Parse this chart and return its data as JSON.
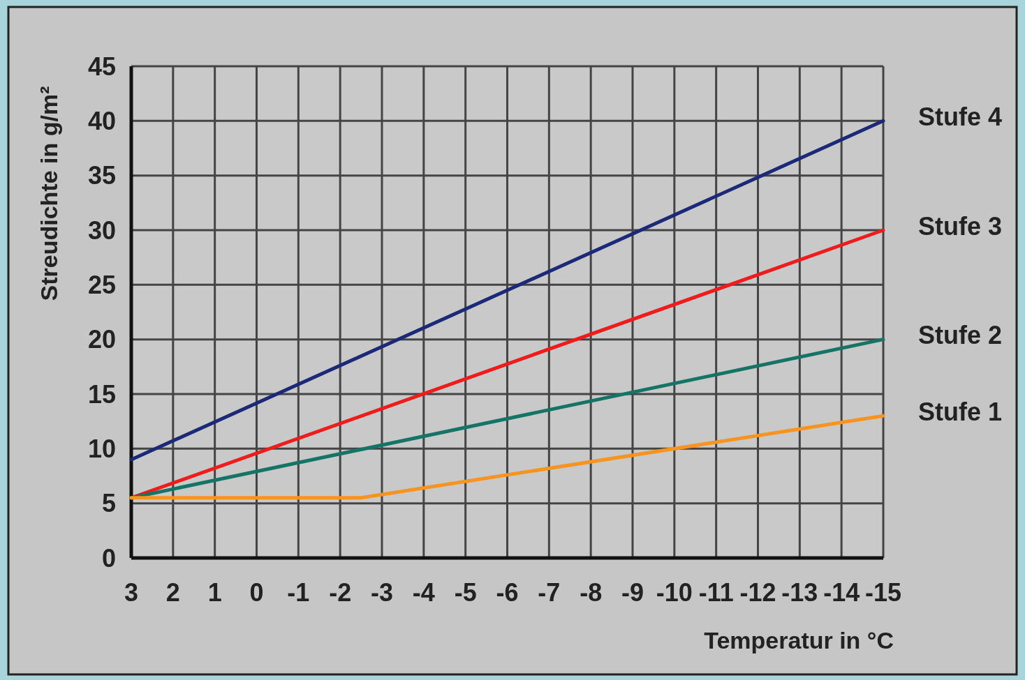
{
  "chart_data": {
    "type": "line",
    "xlabel": "Temperatur in °C",
    "ylabel": "Streudichte in g/m²",
    "xlim": [
      3,
      -15
    ],
    "ylim": [
      0,
      45
    ],
    "xticks": [
      3,
      2,
      1,
      0,
      -1,
      -2,
      -3,
      -4,
      -5,
      -6,
      -7,
      -8,
      -9,
      -10,
      -11,
      -12,
      -13,
      -14,
      -15
    ],
    "yticks": [
      0,
      5,
      10,
      15,
      20,
      25,
      30,
      35,
      40,
      45
    ],
    "grid": true,
    "marker": "none",
    "line_style": "solid",
    "series": [
      {
        "name": "Stufe 4",
        "color": "#1c2878",
        "x": [
          3,
          -15
        ],
        "values": [
          9,
          40
        ]
      },
      {
        "name": "Stufe 3",
        "color": "#ee1c1c",
        "x": [
          3,
          -15
        ],
        "values": [
          5.5,
          30
        ]
      },
      {
        "name": "Stufe 2",
        "color": "#157466",
        "x": [
          3,
          -15
        ],
        "values": [
          5.5,
          20
        ]
      },
      {
        "name": "Stufe 1",
        "color": "#f7931e",
        "x": [
          3,
          -2.5,
          -15
        ],
        "values": [
          5.5,
          5.5,
          13
        ]
      }
    ]
  }
}
